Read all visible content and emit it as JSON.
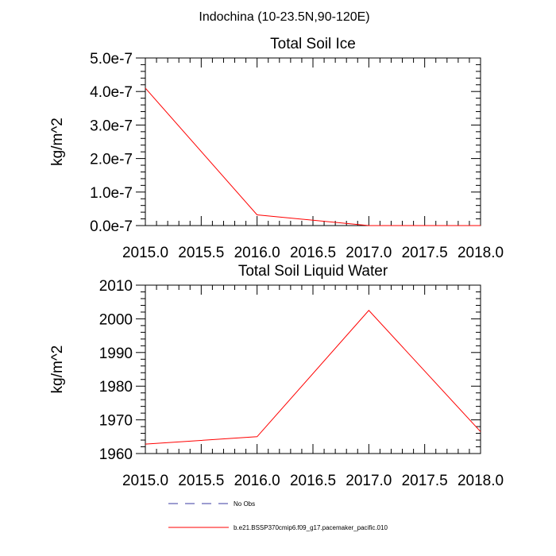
{
  "figure": {
    "title": "Indochina (10-23.5N,90-120E)"
  },
  "chart_data": [
    {
      "type": "line",
      "title": "Total Soil Ice",
      "xlabel": "",
      "ylabel": "kg/m^2",
      "xlim": [
        2015.0,
        2018.0
      ],
      "ylim": [
        0.0,
        5e-07
      ],
      "x_ticks": [
        2015.0,
        2015.5,
        2016.0,
        2016.5,
        2017.0,
        2017.5,
        2018.0
      ],
      "x_tick_labels": [
        "2015.0",
        "2015.5",
        "2016.0",
        "2016.5",
        "2017.0",
        "2017.5",
        "2018.0"
      ],
      "y_ticks": [
        0.0,
        1e-07,
        2e-07,
        3e-07,
        4e-07,
        5e-07
      ],
      "y_tick_labels": [
        "0.0e-7",
        "1.0e-7",
        "2.0e-7",
        "3.0e-7",
        "4.0e-7",
        "5.0e-7"
      ],
      "grid": false,
      "x": [
        2015.0,
        2016.0,
        2017.0,
        2018.0
      ],
      "series": [
        {
          "name": "b.e21.BSSP370cmip6.f09_g17.pacemaker_pacific.010",
          "color": "#ff0000",
          "values": [
            4.1e-07,
            3.2e-08,
            0.0,
            0.0
          ]
        }
      ]
    },
    {
      "type": "line",
      "title": "Total Soil Liquid Water",
      "xlabel": "",
      "ylabel": "kg/m^2",
      "xlim": [
        2015.0,
        2018.0
      ],
      "ylim": [
        1960,
        2010
      ],
      "x_ticks": [
        2015.0,
        2015.5,
        2016.0,
        2016.5,
        2017.0,
        2017.5,
        2018.0
      ],
      "x_tick_labels": [
        "2015.0",
        "2015.5",
        "2016.0",
        "2016.5",
        "2017.0",
        "2017.5",
        "2018.0"
      ],
      "y_ticks": [
        1960,
        1970,
        1980,
        1990,
        2000,
        2010
      ],
      "y_tick_labels": [
        "1960",
        "1970",
        "1980",
        "1990",
        "2000",
        "2010"
      ],
      "grid": false,
      "x": [
        2015.0,
        2016.0,
        2017.0,
        2018.0
      ],
      "series": [
        {
          "name": "b.e21.BSSP370cmip6.f09_g17.pacemaker_pacific.010",
          "color": "#ff0000",
          "values": [
            1962.8,
            1965.0,
            2002.5,
            1966.5
          ]
        }
      ]
    }
  ],
  "legend": {
    "placement": "bottom",
    "items": [
      {
        "label": "No Obs",
        "color": "#3a3aa0",
        "style": "dashed"
      },
      {
        "label": "b.e21.BSSP370cmip6.f09_g17.pacemaker_pacific.010",
        "color": "#ff0000",
        "style": "solid"
      }
    ]
  }
}
